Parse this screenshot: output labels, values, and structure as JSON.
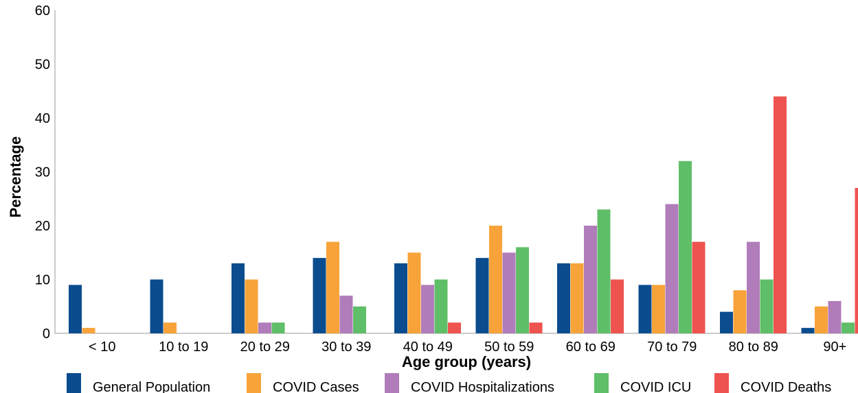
{
  "chart_data": {
    "type": "bar",
    "xlabel": "Age group (years)",
    "ylabel": "Percentage",
    "ylim": [
      0,
      60
    ],
    "yticks": [
      0,
      10,
      20,
      30,
      40,
      50,
      60
    ],
    "grid": false,
    "legend_position": "bottom",
    "categories": [
      "< 10",
      "10 to 19",
      "20 to 29",
      "30 to 39",
      "40 to 49",
      "50 to 59",
      "60 to 69",
      "70 to 79",
      "80 to 89",
      "90+"
    ],
    "series": [
      {
        "name": "General Population",
        "color": "#0b4c8e",
        "values": [
          9,
          10,
          13,
          14,
          13,
          14,
          13,
          9,
          4,
          1
        ]
      },
      {
        "name": "COVID Cases",
        "color": "#f7a33a",
        "values": [
          1,
          2,
          10,
          17,
          15,
          20,
          13,
          9,
          8,
          5
        ]
      },
      {
        "name": "COVID Hospitalizations",
        "color": "#b07cba",
        "values": [
          0,
          0,
          2,
          7,
          9,
          15,
          20,
          24,
          17,
          6
        ]
      },
      {
        "name": "COVID ICU",
        "color": "#5fbe68",
        "values": [
          0,
          0,
          2,
          5,
          10,
          16,
          23,
          32,
          10,
          2
        ]
      },
      {
        "name": "COVID Deaths",
        "color": "#ee5350",
        "values": [
          0,
          0,
          0,
          0,
          2,
          2,
          10,
          17,
          44,
          27
        ]
      }
    ]
  }
}
